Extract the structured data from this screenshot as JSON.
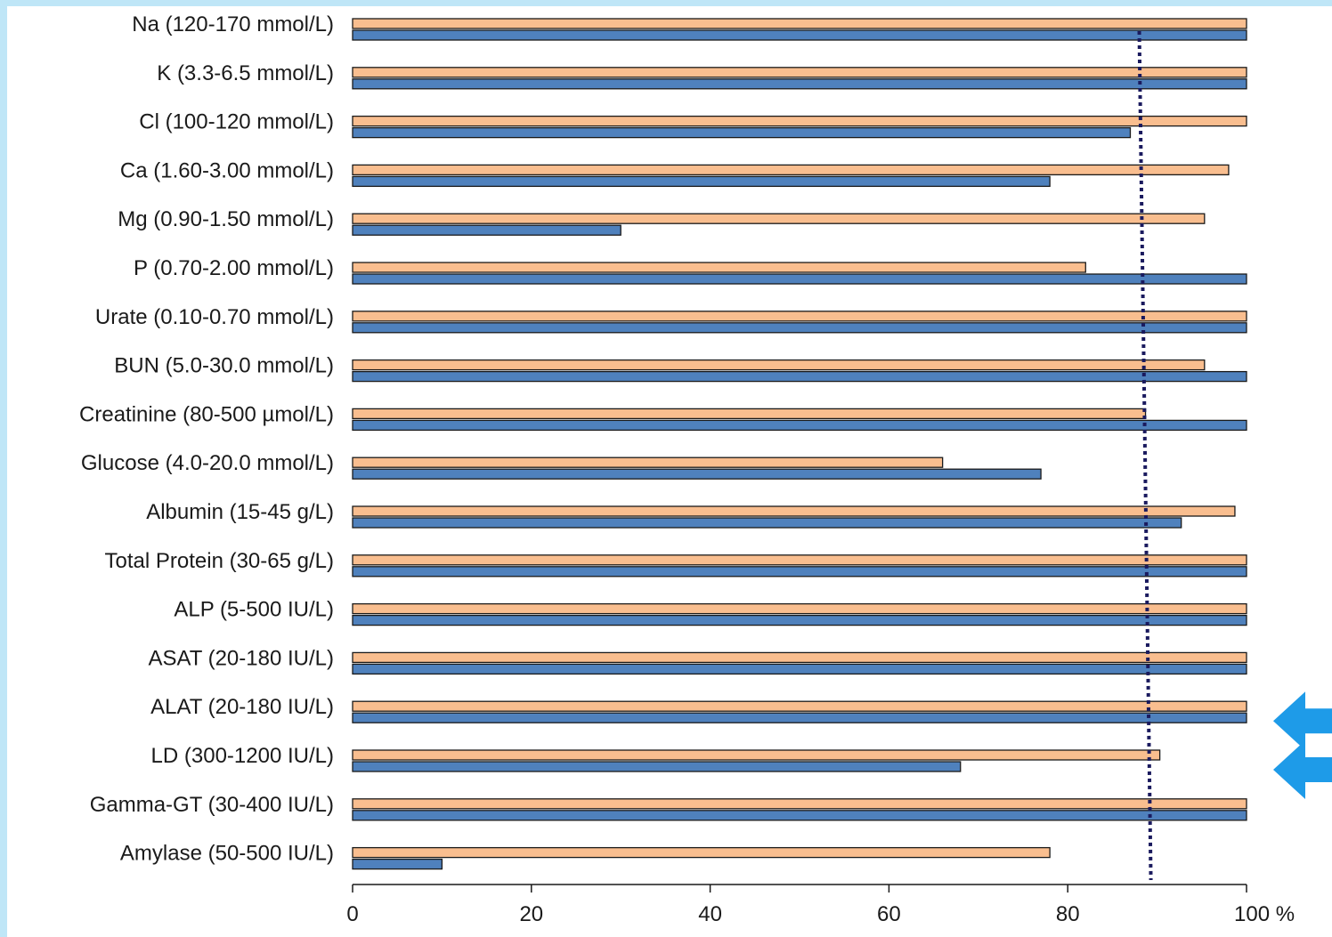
{
  "chart_data": {
    "type": "bar",
    "orientation": "horizontal",
    "title": "",
    "xlabel": "",
    "ylabel": "",
    "xlim": [
      0,
      100
    ],
    "x_ticks": [
      "0",
      "20",
      "40",
      "60",
      "80",
      "100 %"
    ],
    "categories": [
      "Na (120-170 mmol/L)",
      "K (3.3-6.5 mmol/L)",
      "Cl (100-120 mmol/L)",
      "Ca (1.60-3.00 mmol/L)",
      "Mg (0.90-1.50 mmol/L)",
      "P (0.70-2.00 mmol/L)",
      "Urate (0.10-0.70 mmol/L)",
      "BUN (5.0-30.0 mmol/L)",
      "Creatinine (80-500 µmol/L)",
      "Glucose (4.0-20.0 mmol/L)",
      "Albumin (15-45 g/L)",
      "Total Protein (30-65 g/L)",
      "ALP (5-500 IU/L)",
      "ASAT (20-180 IU/L)",
      "ALAT (20-180 IU/L)",
      "LD (300-1200 IU/L)",
      "Gamma-GT (30-400 IU/L)",
      "Amylase (50-500 IU/L)"
    ],
    "series": [
      {
        "color": "#f9be8f",
        "values": [
          100,
          100,
          100,
          98,
          95.3,
          82,
          100,
          95.3,
          88.7,
          66,
          98.7,
          100,
          100,
          100,
          100,
          90.3,
          100,
          78
        ]
      },
      {
        "color": "#4f81bd",
        "values": [
          100,
          100,
          87,
          78,
          30,
          100,
          100,
          100,
          100,
          77,
          92.7,
          100,
          100,
          100,
          100,
          68,
          100,
          10
        ]
      }
    ],
    "reference_line": {
      "style": "dotted",
      "color": "#1a1a5e",
      "x_top": 88,
      "x_bottom": 89.3
    },
    "arrows": {
      "color": "#1e9be8",
      "direction": "left",
      "pointing_at": [
        "ALAT (20-180 IU/L)",
        "LD (300-1200 IU/L)"
      ]
    },
    "grid": false,
    "legend": "none"
  }
}
